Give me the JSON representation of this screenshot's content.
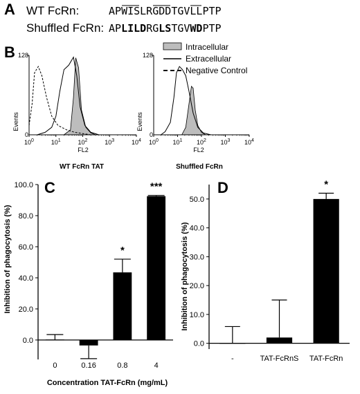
{
  "panel_a": {
    "letter": "A",
    "sequences": [
      {
        "label": "WT FcRn:",
        "segments": [
          {
            "text": "AP",
            "bold": false
          },
          {
            "text": "WIS",
            "bold": false,
            "overline": true
          },
          {
            "text": "LR",
            "bold": false
          },
          {
            "text": "GDD",
            "bold": false,
            "overline": true
          },
          {
            "text": "TGV",
            "bold": false
          },
          {
            "text": "LL",
            "bold": false,
            "overline": true
          },
          {
            "text": "PTP",
            "bold": false
          }
        ]
      },
      {
        "label": "Shuffled FcRn:",
        "segments": [
          {
            "text": "AP",
            "bold": false
          },
          {
            "text": "LILD",
            "bold": true
          },
          {
            "text": "RG",
            "bold": false
          },
          {
            "text": "LS",
            "bold": true
          },
          {
            "text": "TGV",
            "bold": false
          },
          {
            "text": "WD",
            "bold": true
          },
          {
            "text": "PTP",
            "bold": false
          }
        ]
      }
    ]
  },
  "panel_b": {
    "letter": "B",
    "legend": [
      {
        "label": "Intracellular",
        "style": "filled-gray"
      },
      {
        "label": "Extracellular",
        "style": "solid"
      },
      {
        "label": "Negative Control",
        "style": "dashed"
      }
    ],
    "colors": {
      "fill": "#bdbdbd",
      "line": "#000000"
    }
  },
  "chart_data": [
    {
      "type": "area",
      "title": "WT FcRn TAT",
      "xlabel": "FL2",
      "ylabel": "Events",
      "x_scale": "log",
      "x_ticks": [
        "10^0",
        "10^1",
        "10^2",
        "10^3",
        "10^4"
      ],
      "y_ticks": [
        "0",
        "128"
      ],
      "ylim": [
        0,
        128
      ],
      "series": [
        {
          "name": "Intracellular",
          "fill": "gray",
          "x": [
            20,
            35,
            45,
            55,
            70,
            90,
            130,
            200,
            300
          ],
          "y": [
            0,
            8,
            60,
            124,
            108,
            40,
            12,
            3,
            0
          ]
        },
        {
          "name": "Extracellular",
          "fill": "none",
          "x": [
            2,
            4,
            7,
            10,
            14,
            20,
            30,
            45,
            60,
            80,
            120,
            200,
            400
          ],
          "y": [
            0,
            4,
            12,
            30,
            70,
            105,
            112,
            125,
            95,
            45,
            15,
            4,
            0
          ]
        },
        {
          "name": "Negative Control",
          "fill": "none",
          "dash": true,
          "x": [
            1,
            1.3,
            1.6,
            2.2,
            3,
            4.5,
            7,
            12,
            25,
            50,
            100,
            200
          ],
          "y": [
            15,
            50,
            100,
            110,
            95,
            60,
            30,
            15,
            8,
            4,
            2,
            0
          ]
        }
      ]
    },
    {
      "type": "area",
      "title": "Shuffled FcRn",
      "xlabel": "FL2",
      "ylabel": "Events",
      "x_scale": "log",
      "x_ticks": [
        "10^0",
        "10^1",
        "10^2",
        "10^3",
        "10^4"
      ],
      "y_ticks": [
        "0",
        "128"
      ],
      "ylim": [
        0,
        128
      ],
      "series": [
        {
          "name": "Intracellular",
          "fill": "gray",
          "x": [
            15,
            22,
            30,
            38,
            45,
            55,
            70,
            100,
            150
          ],
          "y": [
            0,
            12,
            50,
            78,
            75,
            40,
            15,
            4,
            0
          ]
        },
        {
          "name": "Extracellular",
          "fill": "none",
          "x": [
            2,
            3,
            5,
            7,
            9,
            12,
            16,
            22,
            30,
            45,
            70,
            120,
            250
          ],
          "y": [
            0,
            5,
            20,
            60,
            100,
            110,
            105,
            95,
            70,
            35,
            12,
            3,
            0
          ]
        }
      ]
    },
    {
      "type": "bar",
      "letter": "C",
      "xlabel": "Concentration TAT-FcRn (mg/mL)",
      "ylabel": "Inhibition of phagocytosis (%)",
      "categories": [
        "0",
        "0.16",
        "0.8",
        "4"
      ],
      "values": [
        0.0,
        -3.5,
        43.5,
        92.5
      ],
      "errors": [
        3.5,
        8.5,
        8.5,
        0.5
      ],
      "significance": [
        "",
        "",
        "*",
        "***"
      ],
      "ylim": [
        0,
        100
      ],
      "y_ticks": [
        "0.0",
        "20.0",
        "40.0",
        "60.0",
        "80.0",
        "100.0"
      ],
      "y_tick_values": [
        0,
        20,
        40,
        60,
        80,
        100
      ]
    },
    {
      "type": "bar",
      "letter": "D",
      "xlabel": "",
      "ylabel": "Inhibition of phagocytosis (%)",
      "categories": [
        "-",
        "TAT-FcRnS",
        "TAT-FcRn"
      ],
      "values": [
        0.0,
        2.0,
        50.0
      ],
      "errors": [
        5.8,
        13.0,
        2.0
      ],
      "significance": [
        "",
        "",
        "*"
      ],
      "ylim": [
        0,
        55
      ],
      "y_ticks": [
        "0.0",
        "10.0",
        "20.0",
        "30.0",
        "40.0",
        "50.0"
      ],
      "y_tick_values": [
        0,
        10,
        20,
        30,
        40,
        50
      ]
    }
  ]
}
